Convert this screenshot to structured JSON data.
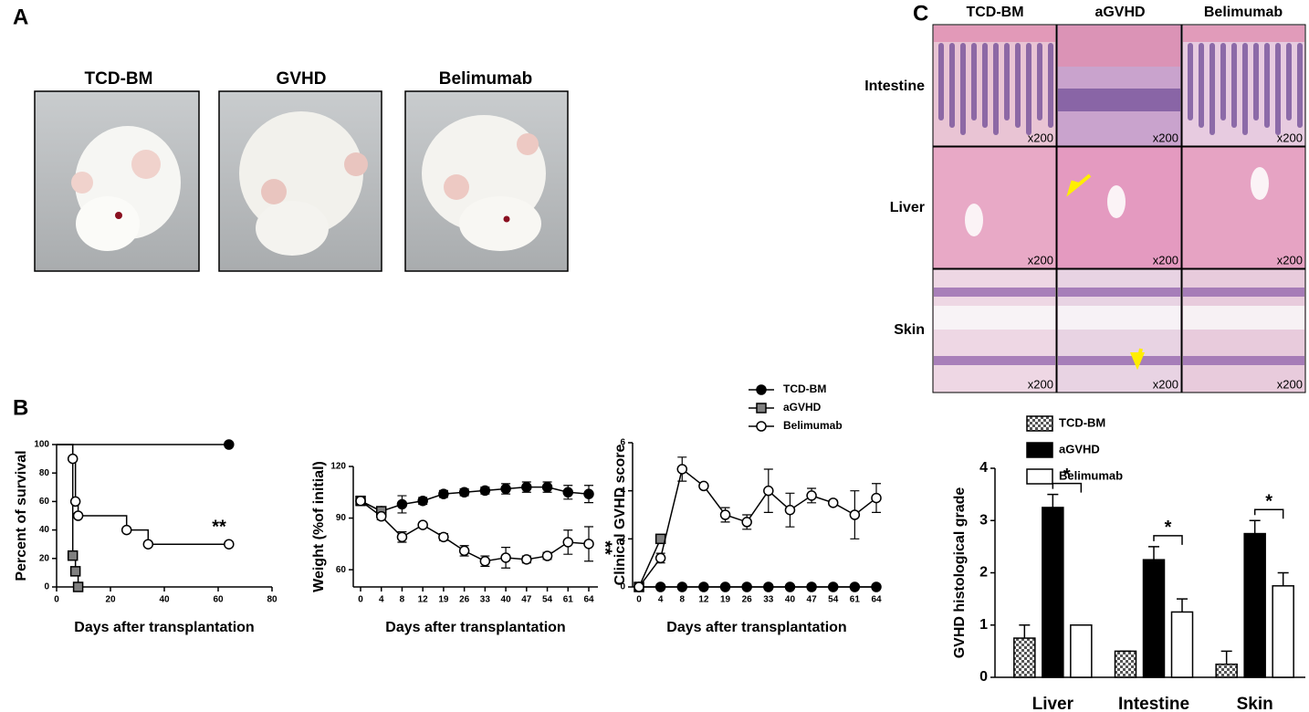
{
  "panel_labels": [
    "A",
    "B",
    "C"
  ],
  "photos": {
    "labels": [
      "TCD-BM",
      "GVHD",
      "Belimumab"
    ]
  },
  "histology": {
    "columns": [
      "TCD-BM",
      "aGVHD",
      "Belimumab"
    ],
    "rows": [
      "Intestine",
      "Liver",
      "Skin"
    ],
    "magnification": "x200"
  },
  "chart_data": [
    {
      "type": "line",
      "step": true,
      "x_label": "Days after transplantation",
      "y_label": "Percent of survival",
      "xlim": [
        0,
        80
      ],
      "xticks": [
        0,
        20,
        40,
        60,
        80
      ],
      "ylim": [
        0,
        100
      ],
      "yticks": [
        0,
        20,
        40,
        60,
        80,
        100
      ],
      "annotation": "**",
      "series": [
        {
          "name": "TCD-BM",
          "color": "#000000",
          "fill": "#000000",
          "marker": "circle",
          "x": [
            0,
            64
          ],
          "values": [
            100,
            100
          ]
        },
        {
          "name": "aGVHD",
          "color": "#000000",
          "fill": "#808080",
          "marker": "square",
          "x": [
            0,
            6,
            7,
            8
          ],
          "values": [
            100,
            22,
            11,
            0
          ]
        },
        {
          "name": "Belimumab",
          "color": "#000000",
          "fill": "#ffffff",
          "marker": "circle",
          "x": [
            0,
            6,
            7,
            8,
            26,
            34,
            64
          ],
          "values": [
            100,
            90,
            60,
            50,
            40,
            30,
            30
          ]
        }
      ]
    },
    {
      "type": "line",
      "x_label": "Days after transplantation",
      "y_label": "Weight (%of initial)",
      "categories": [
        "0",
        "4",
        "8",
        "12",
        "19",
        "26",
        "33",
        "40",
        "47",
        "54",
        "61",
        "64"
      ],
      "ylim": [
        50,
        120
      ],
      "yticks": [
        60,
        90,
        120
      ],
      "annotation": "**",
      "legend": "top",
      "series": [
        {
          "name": "TCD-BM",
          "color": "#000000",
          "fill": "#000000",
          "marker": "circle",
          "values": [
            100,
            94,
            98,
            100,
            104,
            105,
            106,
            107,
            108,
            108,
            105,
            104
          ],
          "errors": [
            0,
            2,
            5,
            2,
            2,
            2,
            2,
            3,
            3,
            3,
            4,
            5
          ]
        },
        {
          "name": "aGVHD",
          "color": "#000000",
          "fill": "#808080",
          "marker": "square",
          "values": [
            100,
            94,
            null,
            null,
            null,
            null,
            null,
            null,
            null,
            null,
            null,
            null
          ],
          "errors": [
            0,
            1,
            null,
            null,
            null,
            null,
            null,
            null,
            null,
            null,
            null,
            null
          ]
        },
        {
          "name": "Belimumab",
          "color": "#000000",
          "fill": "#ffffff",
          "marker": "circle",
          "values": [
            100,
            91,
            79,
            86,
            79,
            71,
            65,
            67,
            66,
            68,
            76,
            75
          ],
          "errors": [
            0,
            2,
            3,
            1,
            2,
            3,
            3,
            6,
            2,
            2,
            7,
            10
          ]
        }
      ]
    },
    {
      "type": "line",
      "x_label": "Days after transplantation",
      "y_label": "Clinical GVHD score",
      "categories": [
        "0",
        "4",
        "8",
        "12",
        "19",
        "26",
        "33",
        "40",
        "47",
        "54",
        "61",
        "64"
      ],
      "ylim": [
        0,
        6
      ],
      "yticks": [
        0,
        2,
        4,
        6
      ],
      "series": [
        {
          "name": "TCD-BM",
          "color": "#000000",
          "fill": "#000000",
          "marker": "circle",
          "values": [
            0,
            0,
            0,
            0,
            0,
            0,
            0,
            0,
            0,
            0,
            0,
            0
          ],
          "errors": [
            0,
            0,
            0,
            0,
            0,
            0,
            0,
            0,
            0,
            0,
            0,
            0
          ]
        },
        {
          "name": "aGVHD",
          "color": "#000000",
          "fill": "#808080",
          "marker": "square",
          "values": [
            0,
            2,
            null,
            null,
            null,
            null,
            null,
            null,
            null,
            null,
            null,
            null
          ],
          "errors": [
            0,
            0.1,
            null,
            null,
            null,
            null,
            null,
            null,
            null,
            null,
            null,
            null
          ]
        },
        {
          "name": "Belimumab",
          "color": "#000000",
          "fill": "#ffffff",
          "marker": "circle",
          "values": [
            0,
            1.2,
            4.9,
            4.2,
            3.0,
            2.7,
            4.0,
            3.2,
            3.8,
            3.5,
            3.0,
            3.7
          ],
          "errors": [
            0,
            0.2,
            0.5,
            0.1,
            0.3,
            0.3,
            0.9,
            0.7,
            0.3,
            0.1,
            1.0,
            0.6
          ]
        }
      ]
    },
    {
      "type": "bar",
      "y_label": "GVHD histological grade",
      "categories": [
        "Liver",
        "Intestine",
        "Skin"
      ],
      "ylim": [
        0,
        4
      ],
      "yticks": [
        0,
        1,
        2,
        3,
        4
      ],
      "legend": "top",
      "significance": [
        "*",
        "*",
        "*"
      ],
      "series": [
        {
          "name": "TCD-BM",
          "color": "#999999",
          "pattern": "checker",
          "values": [
            0.75,
            0.5,
            0.25
          ],
          "errors": [
            0.25,
            0,
            0.25
          ]
        },
        {
          "name": "aGVHD",
          "color": "#000000",
          "values": [
            3.25,
            2.25,
            2.75
          ],
          "errors": [
            0.25,
            0.25,
            0.25
          ]
        },
        {
          "name": "Belimumab",
          "color": "#ffffff",
          "values": [
            1,
            1.25,
            1.75
          ],
          "errors": [
            0,
            0.25,
            0.25
          ]
        }
      ]
    }
  ]
}
